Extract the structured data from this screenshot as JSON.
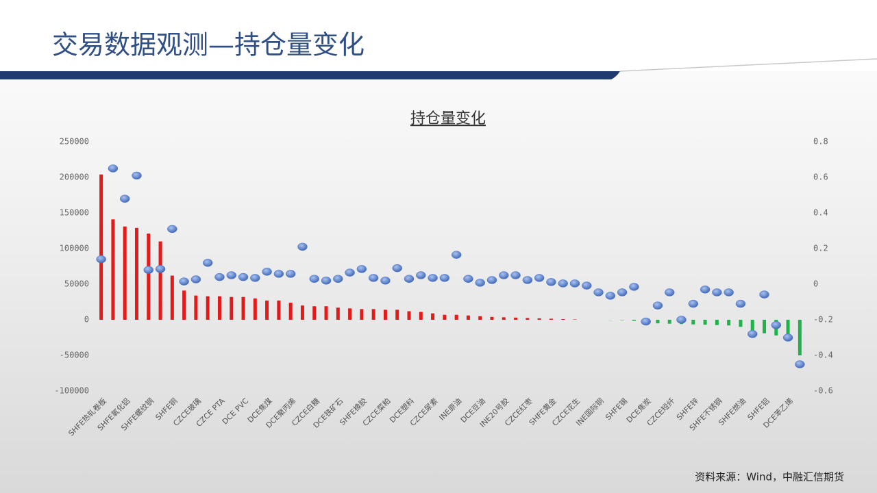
{
  "header": {
    "title": "交易数据观测—持仓量变化"
  },
  "chart_data": {
    "type": "bar",
    "title": "持仓量变化",
    "categories": [
      "SHFE热轧卷板",
      null,
      "SHFE氧化铝",
      null,
      "SHFE螺纹钢",
      null,
      "SHFE铜",
      null,
      "CZCE玻璃",
      null,
      "CZCE PTA",
      null,
      "DCE PVC",
      null,
      "DCE焦煤",
      null,
      "DCE聚丙烯",
      null,
      "CZCE白糖",
      null,
      "DCE铁矿石",
      null,
      "SHFE橡胶",
      null,
      "CZCE菜粕",
      null,
      "DCE塑料",
      null,
      "CZCE尿素",
      null,
      "INE原油",
      null,
      "DCE豆油",
      null,
      "INE20号胶",
      null,
      "CZCE红枣",
      null,
      "SHFE黄金",
      null,
      "CZCE花生",
      null,
      "INE国际铜",
      null,
      "SHFE锡",
      null,
      "DCE焦炭",
      null,
      "CZCE短纤",
      null,
      "SHFE锌",
      null,
      "SHFE不锈钢",
      null,
      "SHFE燃油",
      null,
      "SHFE铝",
      null,
      "DCE苯乙烯",
      null
    ],
    "series": [
      {
        "type": "bar",
        "positive_color": "#e31a1a",
        "negative_color": "#22b24c",
        "values": [
          204000,
          141000,
          131000,
          129000,
          121000,
          110000,
          62000,
          41000,
          34000,
          33000,
          33000,
          32000,
          32000,
          30000,
          27000,
          27000,
          24000,
          20000,
          19000,
          19000,
          17000,
          16000,
          15000,
          15000,
          14000,
          14000,
          12000,
          11000,
          9000,
          7000,
          7000,
          6000,
          5000,
          4000,
          3500,
          3000,
          2500,
          2000,
          1500,
          1000,
          500,
          0,
          0,
          -200,
          -500,
          -1500,
          -3000,
          -5000,
          -5500,
          -6000,
          -6500,
          -7000,
          -7500,
          -8000,
          -10000,
          -18000,
          -19000,
          -22000,
          -30000,
          -50000
        ]
      },
      {
        "type": "scatter",
        "axis": "y2",
        "color": "#4a74c9",
        "values": [
          0.14,
          0.65,
          0.48,
          0.61,
          0.08,
          0.085,
          0.31,
          0.015,
          0.027,
          0.12,
          0.04,
          0.05,
          0.04,
          0.035,
          0.07,
          0.058,
          0.058,
          0.21,
          0.03,
          0.02,
          0.03,
          0.065,
          0.085,
          0.035,
          0.02,
          0.09,
          0.03,
          0.05,
          0.035,
          0.035,
          0.165,
          0.03,
          0.008,
          0.023,
          0.05,
          0.05,
          0.023,
          0.035,
          0.012,
          0.004,
          0.004,
          -0.008,
          -0.046,
          -0.065,
          -0.046,
          -0.015,
          -0.21,
          -0.12,
          -0.046,
          -0.2,
          -0.11,
          -0.03,
          -0.046,
          -0.046,
          -0.11,
          -0.28,
          -0.058,
          -0.23,
          -0.3,
          -0.45
        ]
      }
    ],
    "ylim": [
      -100000,
      250000
    ],
    "yticks": [
      -100000,
      -50000,
      0,
      50000,
      100000,
      150000,
      200000,
      250000
    ],
    "y2lim": [
      -0.6,
      0.8
    ],
    "y2ticks": [
      -0.6,
      -0.4,
      -0.2,
      0,
      0.2,
      0.4,
      0.6,
      0.8
    ]
  },
  "footer": {
    "source": "资料来源：Wind，中融汇信期货"
  }
}
